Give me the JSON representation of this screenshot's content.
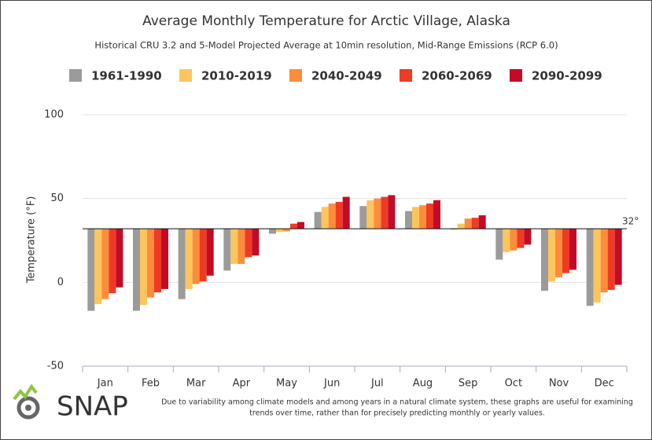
{
  "chart_data": {
    "type": "bar",
    "title": "Average Monthly Temperature for Arctic Village, Alaska",
    "subtitle": "Historical CRU 3.2 and 5-Model Projected Average at 10min resolution, Mid-Range Emissions (RCP 6.0)",
    "y_label": "Temperature (°F)",
    "categories": [
      "Jan",
      "Feb",
      "Mar",
      "Apr",
      "May",
      "Jun",
      "Jul",
      "Aug",
      "Sep",
      "Oct",
      "Nov",
      "Dec"
    ],
    "series": [
      {
        "name": "1961-1990",
        "color": "#9b9b9b",
        "values": [
          -17,
          -17,
          -10,
          7,
          29,
          42,
          45.5,
          42.5,
          31.5,
          13.5,
          -5,
          -14
        ]
      },
      {
        "name": "2010-2019",
        "color": "#fdc55c",
        "values": [
          -13,
          -13.5,
          -4,
          11,
          30,
          45,
          49,
          45,
          35,
          18,
          0.5,
          -12
        ]
      },
      {
        "name": "2040-2049",
        "color": "#fb8d3d",
        "values": [
          -10,
          -9,
          -1,
          11,
          30.5,
          47,
          50,
          46,
          38,
          19,
          3,
          -6
        ]
      },
      {
        "name": "2060-2069",
        "color": "#ee3b25",
        "values": [
          -6.5,
          -6,
          0.5,
          15,
          35,
          48,
          51,
          47,
          38.5,
          20.5,
          5.5,
          -4.5
        ]
      },
      {
        "name": "2090-2099",
        "color": "#c40b26",
        "values": [
          -3,
          -4,
          4,
          16,
          36,
          51,
          52,
          49,
          40,
          22.5,
          7.5,
          -1.5
        ]
      }
    ],
    "baseline": {
      "value": 32,
      "label": "32°"
    },
    "ylim": [
      -50,
      100
    ],
    "yticks": [
      -50,
      0,
      50,
      100
    ],
    "grid": true,
    "footer": {
      "logo": "SNAP",
      "note": [
        "Due to variability among climate models and among years in a natural climate system, these graphs are useful for examining",
        "trends over time, rather than for precisely predicting monthly or yearly values."
      ]
    }
  }
}
